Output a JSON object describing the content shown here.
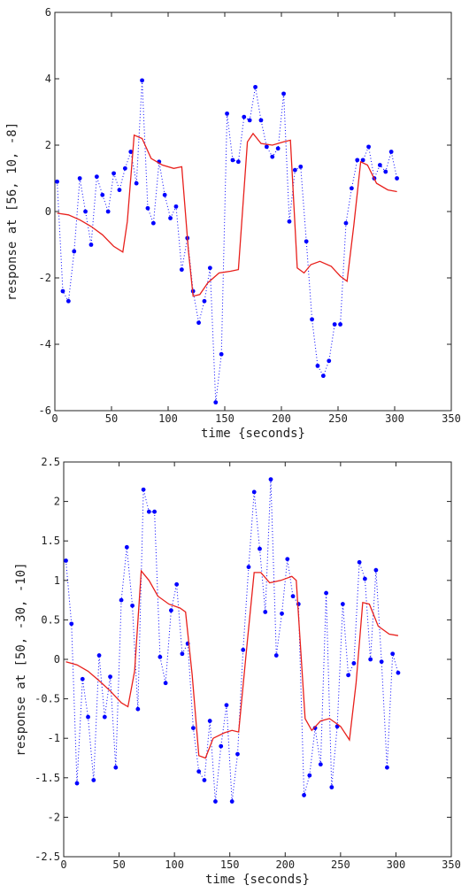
{
  "chart_data": [
    {
      "type": "scatter",
      "xlabel": "time {seconds}",
      "ylabel": "response at [56, 10, -8]",
      "xlim": [
        0,
        350
      ],
      "ylim": [
        -6,
        6
      ],
      "xticks": [
        0,
        50,
        100,
        150,
        200,
        250,
        300,
        350
      ],
      "yticks": [
        -6,
        -4,
        -2,
        0,
        2,
        4,
        6
      ],
      "grid": false,
      "legend": "none",
      "series": [
        {
          "style": "points joined by dotted line",
          "color": "#0000ff",
          "x": [
            2,
            7,
            12,
            17,
            22,
            27,
            32,
            37,
            42,
            47,
            52,
            57,
            62,
            67,
            72,
            77,
            82,
            87,
            92,
            97,
            102,
            107,
            112,
            117,
            122,
            127,
            132,
            137,
            142,
            147,
            152,
            157,
            162,
            167,
            172,
            177,
            182,
            187,
            192,
            197,
            202,
            207,
            212,
            217,
            222,
            227,
            232,
            237,
            242,
            247,
            252,
            257,
            262,
            267,
            272,
            277,
            282,
            287,
            292,
            297,
            302
          ],
          "y": [
            0.9,
            -2.4,
            -2.7,
            -1.2,
            1.0,
            0.0,
            -1.0,
            1.05,
            0.5,
            0.0,
            1.15,
            0.65,
            1.3,
            1.8,
            0.85,
            3.95,
            0.1,
            -0.35,
            1.5,
            0.5,
            -0.2,
            0.15,
            -1.75,
            -0.8,
            -2.4,
            -3.35,
            -2.7,
            -1.7,
            -5.75,
            -4.3,
            2.95,
            1.55,
            1.5,
            2.85,
            2.75,
            3.75,
            2.75,
            1.95,
            1.65,
            1.9,
            3.55,
            -0.3,
            1.25,
            1.35,
            -0.9,
            -3.25,
            -4.65,
            -4.95,
            -4.5,
            -3.4,
            -3.4,
            -0.35,
            0.7,
            1.55,
            1.55,
            1.95,
            1.0,
            1.4,
            1.2,
            1.8,
            1.0
          ]
        },
        {
          "style": "line",
          "color": "#e8201c",
          "x": [
            2,
            12,
            22,
            32,
            42,
            52,
            60,
            64,
            70,
            77,
            85,
            95,
            105,
            112,
            118,
            122,
            128,
            135,
            145,
            155,
            162,
            170,
            175,
            182,
            192,
            202,
            208,
            214,
            220,
            226,
            234,
            244,
            252,
            258,
            264,
            270,
            276,
            284,
            294,
            302
          ],
          "y": [
            -0.05,
            -0.1,
            -0.25,
            -0.45,
            -0.7,
            -1.05,
            -1.22,
            -0.3,
            2.3,
            2.2,
            1.6,
            1.4,
            1.3,
            1.35,
            -1.2,
            -2.55,
            -2.5,
            -2.15,
            -1.85,
            -1.8,
            -1.75,
            2.1,
            2.35,
            2.05,
            2.0,
            2.1,
            2.15,
            -1.7,
            -1.85,
            -1.6,
            -1.5,
            -1.65,
            -1.95,
            -2.1,
            -0.4,
            1.5,
            1.4,
            0.85,
            0.65,
            0.6
          ]
        }
      ]
    },
    {
      "type": "scatter",
      "xlabel": "time {seconds}",
      "ylabel": "response at [50, -30, -10]",
      "xlim": [
        0,
        350
      ],
      "ylim": [
        -2.5,
        2.5
      ],
      "xticks": [
        0,
        50,
        100,
        150,
        200,
        250,
        300,
        350
      ],
      "yticks": [
        -2.5,
        -2,
        -1.5,
        -1,
        -0.5,
        0,
        0.5,
        1,
        1.5,
        2,
        2.5
      ],
      "ytick_labels": [
        "-2.5",
        "-2",
        "-1.5",
        "-1",
        "-0.5",
        "0",
        "0.5",
        "1",
        "1.5",
        "2",
        "2.5"
      ],
      "grid": false,
      "legend": "none",
      "series": [
        {
          "style": "points joined by dotted line",
          "color": "#0000ff",
          "x": [
            2,
            7,
            12,
            17,
            22,
            27,
            32,
            37,
            42,
            47,
            52,
            57,
            62,
            67,
            72,
            77,
            82,
            87,
            92,
            97,
            102,
            107,
            112,
            117,
            122,
            127,
            132,
            137,
            142,
            147,
            152,
            157,
            162,
            167,
            172,
            177,
            182,
            187,
            192,
            197,
            202,
            207,
            212,
            217,
            222,
            227,
            232,
            237,
            242,
            247,
            252,
            257,
            262,
            267,
            272,
            277,
            282,
            287,
            292,
            297,
            302
          ],
          "y": [
            1.25,
            0.45,
            -1.57,
            -0.25,
            -0.73,
            -1.53,
            0.05,
            -0.73,
            -0.22,
            -1.37,
            0.75,
            1.42,
            0.68,
            -0.63,
            2.15,
            1.87,
            1.87,
            0.03,
            -0.3,
            0.62,
            0.95,
            0.07,
            0.2,
            -0.87,
            -1.42,
            -1.53,
            -0.78,
            -1.8,
            -1.1,
            -0.58,
            -1.8,
            -1.2,
            0.12,
            1.17,
            2.12,
            1.4,
            0.6,
            2.28,
            0.05,
            0.58,
            1.27,
            0.8,
            0.7,
            -1.72,
            -1.47,
            -0.87,
            -1.33,
            0.84,
            -1.62,
            -0.85,
            0.7,
            -0.2,
            -0.05,
            1.23,
            1.02,
            0.0,
            1.13,
            -0.03,
            -1.37,
            0.07,
            -0.17
          ]
        },
        {
          "style": "line",
          "color": "#e8201c",
          "x": [
            2,
            12,
            22,
            32,
            42,
            52,
            58,
            64,
            70,
            77,
            85,
            95,
            105,
            110,
            116,
            122,
            128,
            135,
            145,
            152,
            158,
            166,
            172,
            178,
            186,
            196,
            206,
            210,
            218,
            224,
            232,
            240,
            250,
            258,
            264,
            270,
            276,
            284,
            294,
            302
          ],
          "y": [
            -0.03,
            -0.07,
            -0.15,
            -0.27,
            -0.4,
            -0.55,
            -0.6,
            -0.15,
            1.12,
            1.0,
            0.8,
            0.7,
            0.65,
            0.6,
            -0.2,
            -1.22,
            -1.25,
            -1.0,
            -0.93,
            -0.9,
            -0.92,
            0.25,
            1.1,
            1.1,
            0.97,
            1.0,
            1.05,
            1.0,
            -0.75,
            -0.9,
            -0.78,
            -0.75,
            -0.85,
            -1.02,
            -0.3,
            0.72,
            0.7,
            0.42,
            0.32,
            0.3
          ]
        }
      ]
    }
  ]
}
